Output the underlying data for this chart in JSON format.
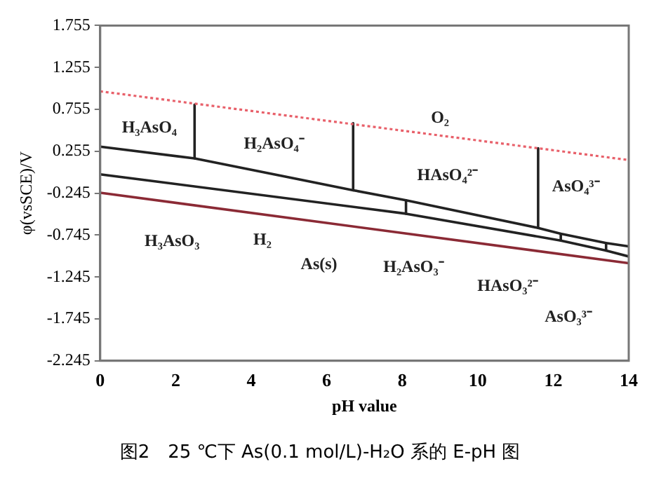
{
  "chart_data": {
    "type": "line",
    "title": "图2　25 ℃下 As(0.1 mol/L)-H₂O 系的 E-pH 图",
    "xlabel": "pH value",
    "ylabel": "φ(vsSCE)/V",
    "xlim": [
      0,
      14
    ],
    "xticks": [
      0,
      2,
      4,
      6,
      8,
      10,
      12,
      14
    ],
    "ylim": [
      -2.245,
      1.755
    ],
    "yticks": [
      -2.245,
      -1.745,
      -1.245,
      -0.745,
      -0.245,
      0.255,
      0.755,
      1.255,
      1.755
    ],
    "grid": false,
    "legend": false,
    "marker": "none",
    "series": [
      {
        "color": "#e8606a",
        "line_style": "dotted",
        "x": [
          0,
          14
        ],
        "values": [
          0.97,
          0.15
        ]
      },
      {
        "color": "#8b2a35",
        "line_style": "solid",
        "x": [
          0,
          14
        ],
        "values": [
          -0.24,
          -1.08
        ]
      },
      {
        "color": "#222222",
        "line_style": "solid",
        "x": [
          0,
          2.5,
          6.7,
          8.1,
          11.6,
          12.2,
          13.4,
          14
        ],
        "values": [
          0.31,
          0.17,
          -0.21,
          -0.33,
          -0.66,
          -0.73,
          -0.84,
          -0.88
        ]
      },
      {
        "color": "#222222",
        "line_style": "solid",
        "x": [
          0,
          8.1,
          12.2,
          13.4,
          14
        ],
        "values": [
          -0.02,
          -0.49,
          -0.81,
          -0.93,
          -1.0
        ]
      },
      {
        "color": "#222222",
        "line_style": "solid",
        "x": [
          2.5,
          2.5
        ],
        "values": [
          0.81,
          0.17
        ]
      },
      {
        "color": "#222222",
        "line_style": "solid",
        "x": [
          6.7,
          6.7
        ],
        "values": [
          0.59,
          -0.21
        ]
      },
      {
        "color": "#222222",
        "line_style": "solid",
        "x": [
          11.6,
          11.6
        ],
        "values": [
          0.29,
          -0.66
        ]
      },
      {
        "color": "#222222",
        "line_style": "solid",
        "x": [
          8.1,
          8.1
        ],
        "values": [
          -0.33,
          -0.49
        ]
      },
      {
        "color": "#222222",
        "line_style": "solid",
        "x": [
          12.2,
          12.2
        ],
        "values": [
          -0.73,
          -0.81
        ]
      },
      {
        "color": "#222222",
        "line_style": "solid",
        "x": [
          13.4,
          13.4
        ],
        "values": [
          -0.84,
          -0.93
        ]
      }
    ],
    "annotations": [
      "H₃AsO₄",
      "H₂AsO₄⁻",
      "O₂",
      "HAsO₄²⁻",
      "AsO₄³⁻",
      "H₃AsO₃",
      "H₂",
      "As(s)",
      "H₂AsO₃⁻",
      "HAsO₃²⁻",
      "AsO₃³⁻"
    ]
  }
}
